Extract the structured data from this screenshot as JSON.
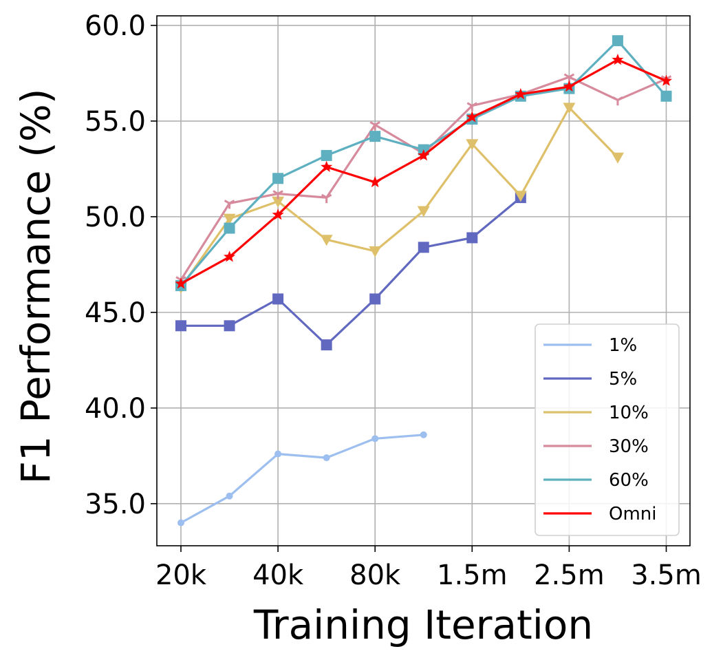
{
  "chart_data": {
    "type": "line",
    "xlabel": "Training Iteration",
    "ylabel": "F1 Performance (%)",
    "x": [
      "20k",
      "",
      "40k",
      "",
      "80k",
      "",
      "1.5m",
      "",
      "2.5m",
      "",
      "3.5m"
    ],
    "x_tick_labels": [
      "20k",
      "40k",
      "80k",
      "1.5m",
      "2.5m",
      "3.5m"
    ],
    "ylim": [
      32.8,
      60.5
    ],
    "y_ticks": [
      "35.0",
      "40.0",
      "45.0",
      "50.0",
      "55.0",
      "60.0"
    ],
    "grid": true,
    "legend_position": "lower-right",
    "series": [
      {
        "name": "1%",
        "color": "#9dbff0",
        "marker": "circle",
        "values": [
          34.0,
          35.4,
          37.6,
          37.4,
          38.4,
          38.6,
          null,
          null,
          null,
          null,
          null
        ]
      },
      {
        "name": "5%",
        "color": "#6168c0",
        "marker": "square",
        "values": [
          44.3,
          44.3,
          45.7,
          43.3,
          45.7,
          48.4,
          48.9,
          51.0,
          null,
          null,
          null
        ]
      },
      {
        "name": "10%",
        "color": "#dfc06a",
        "marker": "triangle-down",
        "values": [
          46.3,
          49.9,
          50.8,
          48.8,
          48.2,
          50.3,
          53.8,
          51.1,
          55.7,
          53.1,
          null
        ]
      },
      {
        "name": "30%",
        "color": "#d68a9c",
        "marker": "tri",
        "values": [
          46.7,
          50.7,
          51.2,
          51.0,
          54.8,
          53.3,
          55.8,
          56.4,
          57.3,
          56.1,
          57.2
        ]
      },
      {
        "name": "60%",
        "color": "#5eb0c0",
        "marker": "square",
        "values": [
          46.4,
          49.4,
          52.0,
          53.2,
          54.2,
          53.5,
          55.1,
          56.3,
          56.7,
          59.2,
          56.3
        ]
      },
      {
        "name": "Omni",
        "color": "#ff0000",
        "marker": "star",
        "values": [
          46.5,
          47.9,
          50.1,
          52.6,
          51.8,
          53.2,
          55.2,
          56.4,
          56.8,
          58.2,
          57.1
        ]
      }
    ]
  }
}
